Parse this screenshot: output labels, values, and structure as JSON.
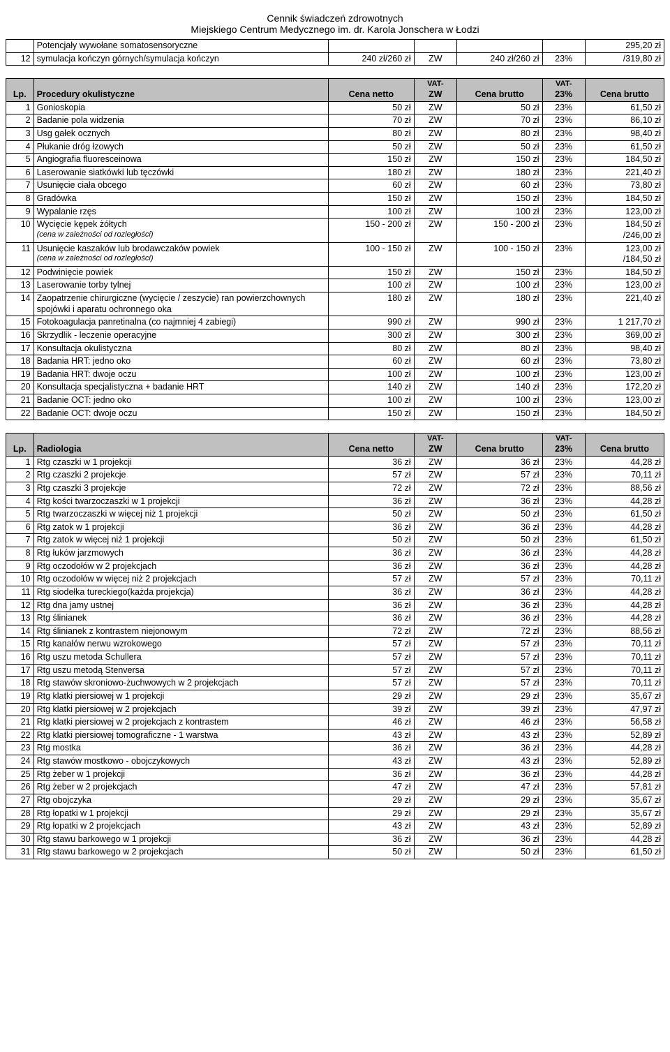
{
  "title": {
    "line1": "Cennik świadczeń zdrowotnych",
    "line2": "Miejskiego Centrum Medycznego im. dr. Karola Jonschera w Łodzi"
  },
  "intro_table": {
    "rows": [
      {
        "lp": "",
        "name": "Potencjały wywołane somatosensoryczne",
        "netto": "",
        "vatzw": "",
        "brutto1": "",
        "vat23": "",
        "brutto2": "295,20 zł"
      },
      {
        "lp": "12",
        "name": "symulacja kończyn górnych/symulacja kończyn",
        "netto": "240 zł/260 zł",
        "vatzw": "ZW",
        "brutto1": "240 zł/260 zł",
        "vat23": "23%",
        "brutto2": "/319,80 zł"
      }
    ]
  },
  "sections": [
    {
      "header": {
        "lp": "Lp.",
        "name": "Procedury okulistyczne",
        "netto": "Cena netto",
        "vatzw_top": "VAT-",
        "vatzw": "ZW",
        "brutto1": "Cena brutto",
        "vat23_top": "VAT-",
        "vat23": "23%",
        "brutto2": "Cena brutto"
      },
      "rows": [
        {
          "lp": "1",
          "name": "Gonioskopia",
          "netto": "50 zł",
          "vatzw": "ZW",
          "brutto1": "50 zł",
          "vat23": "23%",
          "brutto2": "61,50 zł"
        },
        {
          "lp": "2",
          "name": "Badanie pola widzenia",
          "netto": "70 zł",
          "vatzw": "ZW",
          "brutto1": "70 zł",
          "vat23": "23%",
          "brutto2": "86,10 zł"
        },
        {
          "lp": "3",
          "name": "Usg gałek ocznych",
          "netto": "80 zł",
          "vatzw": "ZW",
          "brutto1": "80 zł",
          "vat23": "23%",
          "brutto2": "98,40 zł"
        },
        {
          "lp": "4",
          "name": "Płukanie dróg łzowych",
          "netto": "50 zł",
          "vatzw": "ZW",
          "brutto1": "50 zł",
          "vat23": "23%",
          "brutto2": "61,50 zł"
        },
        {
          "lp": "5",
          "name": "Angiografia fluoresceinowa",
          "netto": "150 zł",
          "vatzw": "ZW",
          "brutto1": "150 zł",
          "vat23": "23%",
          "brutto2": "184,50 zł"
        },
        {
          "lp": "6",
          "name": "Laserowanie siatkówki lub tęczówki",
          "netto": "180 zł",
          "vatzw": "ZW",
          "brutto1": "180 zł",
          "vat23": "23%",
          "brutto2": "221,40 zł"
        },
        {
          "lp": "7",
          "name": "Usunięcie ciała obcego",
          "netto": "60 zł",
          "vatzw": "ZW",
          "brutto1": "60 zł",
          "vat23": "23%",
          "brutto2": "73,80 zł"
        },
        {
          "lp": "8",
          "name": "Gradówka",
          "netto": "150 zł",
          "vatzw": "ZW",
          "brutto1": "150 zł",
          "vat23": "23%",
          "brutto2": "184,50 zł"
        },
        {
          "lp": "9",
          "name": "Wypalanie rzęs",
          "netto": "100 zł",
          "vatzw": "ZW",
          "brutto1": "100 zł",
          "vat23": "23%",
          "brutto2": "123,00 zł"
        },
        {
          "lp": "10",
          "name": "Wycięcie kępek żółtych",
          "sub": "(cena w zależności od rozległości)",
          "netto": "150 - 200 zł",
          "vatzw": "ZW",
          "brutto1": "150 - 200 zł",
          "vat23": "23%",
          "brutto2": "184,50 zł",
          "brutto2_sub": "/246,00 zł"
        },
        {
          "lp": "11",
          "name": "Usunięcie kaszaków lub brodawczaków powiek",
          "sub": "(cena w zależności od rozległości)",
          "netto": "100 - 150 zł",
          "vatzw": "ZW",
          "brutto1": "100 - 150 zł",
          "vat23": "23%",
          "brutto2": "123,00 zł",
          "brutto2_sub": "/184,50 zł"
        },
        {
          "lp": "12",
          "name": "Podwinięcie powiek",
          "netto": "150 zł",
          "vatzw": "ZW",
          "brutto1": "150 zł",
          "vat23": "23%",
          "brutto2": "184,50 zł"
        },
        {
          "lp": "13",
          "name": "Laserowanie torby tylnej",
          "netto": "100 zł",
          "vatzw": "ZW",
          "brutto1": "100 zł",
          "vat23": "23%",
          "brutto2": "123,00 zł"
        },
        {
          "lp": "14",
          "name": "Zaopatrzenie chirurgiczne  (wycięcie / zeszycie) ran powierzchownych spojówki i aparatu ochronnego oka",
          "netto": "180 zł",
          "vatzw": "ZW",
          "brutto1": "180 zł",
          "vat23": "23%",
          "brutto2": "221,40 zł"
        },
        {
          "lp": "15",
          "name": "Fotokoagulacja panretinalna (co najmniej 4 zabiegi)",
          "netto": "990 zł",
          "vatzw": "ZW",
          "brutto1": "990 zł",
          "vat23": "23%",
          "brutto2": "1 217,70 zł"
        },
        {
          "lp": "16",
          "name": "Skrzydlik - leczenie operacyjne",
          "netto": "300 zł",
          "vatzw": "ZW",
          "brutto1": "300 zł",
          "vat23": "23%",
          "brutto2": "369,00 zł"
        },
        {
          "lp": "17",
          "name": "Konsultacja okulistyczna",
          "netto": "80 zł",
          "vatzw": "ZW",
          "brutto1": "80 zł",
          "vat23": "23%",
          "brutto2": "98,40 zł"
        },
        {
          "lp": "18",
          "name": "Badania HRT: jedno oko",
          "netto": "60 zł",
          "vatzw": "ZW",
          "brutto1": "60 zł",
          "vat23": "23%",
          "brutto2": "73,80 zł"
        },
        {
          "lp": "19",
          "name": "Badania HRT: dwoje oczu",
          "netto": "100 zł",
          "vatzw": "ZW",
          "brutto1": "100 zł",
          "vat23": "23%",
          "brutto2": "123,00 zł"
        },
        {
          "lp": "20",
          "name": "Konsultacja specjalistyczna + badanie HRT",
          "netto": "140 zł",
          "vatzw": "ZW",
          "brutto1": "140 zł",
          "vat23": "23%",
          "brutto2": "172,20 zł"
        },
        {
          "lp": "21",
          "name": "Badanie OCT: jedno oko",
          "netto": "100 zł",
          "vatzw": "ZW",
          "brutto1": "100 zł",
          "vat23": "23%",
          "brutto2": "123,00 zł"
        },
        {
          "lp": "22",
          "name": "Badanie OCT: dwoje oczu",
          "netto": "150 zł",
          "vatzw": "ZW",
          "brutto1": "150 zł",
          "vat23": "23%",
          "brutto2": "184,50 zł"
        }
      ]
    },
    {
      "header": {
        "lp": "Lp.",
        "name": "Radiologia",
        "netto": "Cena netto",
        "vatzw_top": "VAT-",
        "vatzw": "ZW",
        "brutto1": "Cena brutto",
        "vat23_top": "VAT-",
        "vat23": "23%",
        "brutto2": "Cena brutto"
      },
      "rows": [
        {
          "lp": "1",
          "name": "Rtg czaszki w 1 projekcji",
          "netto": "36 zł",
          "vatzw": "ZW",
          "brutto1": "36 zł",
          "vat23": "23%",
          "brutto2": "44,28 zł"
        },
        {
          "lp": "2",
          "name": "Rtg czaszki 2 projekcje",
          "netto": "57 zł",
          "vatzw": "ZW",
          "brutto1": "57 zł",
          "vat23": "23%",
          "brutto2": "70,11 zł"
        },
        {
          "lp": "3",
          "name": "Rtg czaszki 3 projekcje",
          "netto": "72 zł",
          "vatzw": "ZW",
          "brutto1": "72 zł",
          "vat23": "23%",
          "brutto2": "88,56 zł"
        },
        {
          "lp": "4",
          "name": "Rtg kości twarzoczaszki w 1 projekcji",
          "netto": "36 zł",
          "vatzw": "ZW",
          "brutto1": "36 zł",
          "vat23": "23%",
          "brutto2": "44,28 zł"
        },
        {
          "lp": "5",
          "name": "Rtg twarzoczaszki w więcej niż 1 projekcji",
          "netto": "50 zł",
          "vatzw": "ZW",
          "brutto1": "50 zł",
          "vat23": "23%",
          "brutto2": "61,50 zł"
        },
        {
          "lp": "6",
          "name": "Rtg zatok w 1 projekcji",
          "netto": "36 zł",
          "vatzw": "ZW",
          "brutto1": "36 zł",
          "vat23": "23%",
          "brutto2": "44,28 zł"
        },
        {
          "lp": "7",
          "name": "Rtg zatok w więcej niż 1 projekcji",
          "netto": "50 zł",
          "vatzw": "ZW",
          "brutto1": "50 zł",
          "vat23": "23%",
          "brutto2": "61,50 zł"
        },
        {
          "lp": "8",
          "name": "Rtg łuków jarzmowych",
          "netto": "36 zł",
          "vatzw": "ZW",
          "brutto1": "36 zł",
          "vat23": "23%",
          "brutto2": "44,28 zł"
        },
        {
          "lp": "9",
          "name": "Rtg oczodołów w 2 projekcjach",
          "netto": "36 zł",
          "vatzw": "ZW",
          "brutto1": "36 zł",
          "vat23": "23%",
          "brutto2": "44,28 zł"
        },
        {
          "lp": "10",
          "name": "Rtg oczodołów w więcej niż 2 projekcjach",
          "netto": "57 zł",
          "vatzw": "ZW",
          "brutto1": "57 zł",
          "vat23": "23%",
          "brutto2": "70,11 zł"
        },
        {
          "lp": "11",
          "name": "Rtg siodełka tureckiego(każda projekcja)",
          "netto": "36 zł",
          "vatzw": "ZW",
          "brutto1": "36 zł",
          "vat23": "23%",
          "brutto2": "44,28 zł"
        },
        {
          "lp": "12",
          "name": "Rtg dna jamy ustnej",
          "netto": "36 zł",
          "vatzw": "ZW",
          "brutto1": "36 zł",
          "vat23": "23%",
          "brutto2": "44,28 zł"
        },
        {
          "lp": "13",
          "name": "Rtg ślinianek",
          "netto": "36 zł",
          "vatzw": "ZW",
          "brutto1": "36 zł",
          "vat23": "23%",
          "brutto2": "44,28 zł"
        },
        {
          "lp": "14",
          "name": "Rtg ślinianek z kontrastem niejonowym",
          "netto": "72 zł",
          "vatzw": "ZW",
          "brutto1": "72 zł",
          "vat23": "23%",
          "brutto2": "88,56 zł"
        },
        {
          "lp": "15",
          "name": "Rtg kanałów nerwu wzrokowego",
          "netto": "57 zł",
          "vatzw": "ZW",
          "brutto1": "57 zł",
          "vat23": "23%",
          "brutto2": "70,11 zł"
        },
        {
          "lp": "16",
          "name": "Rtg uszu metoda Schullera",
          "netto": "57 zł",
          "vatzw": "ZW",
          "brutto1": "57 zł",
          "vat23": "23%",
          "brutto2": "70,11 zł"
        },
        {
          "lp": "17",
          "name": "Rtg uszu metodą Stenversa",
          "netto": "57 zł",
          "vatzw": "ZW",
          "brutto1": "57 zł",
          "vat23": "23%",
          "brutto2": "70,11 zł"
        },
        {
          "lp": "18",
          "name": "Rtg stawów skroniowo-żuchwowych w 2 projekcjach",
          "netto": "57 zł",
          "vatzw": "ZW",
          "brutto1": "57 zł",
          "vat23": "23%",
          "brutto2": "70,11 zł"
        },
        {
          "lp": "19",
          "name": "Rtg klatki piersiowej w 1 projekcji",
          "netto": "29 zł",
          "vatzw": "ZW",
          "brutto1": "29 zł",
          "vat23": "23%",
          "brutto2": "35,67 zł"
        },
        {
          "lp": "20",
          "name": "Rtg klatki piersiowej w 2 projekcjach",
          "netto": "39 zł",
          "vatzw": "ZW",
          "brutto1": "39 zł",
          "vat23": "23%",
          "brutto2": "47,97 zł"
        },
        {
          "lp": "21",
          "name": "Rtg klatki piersiowej w 2 projekcjach z kontrastem",
          "netto": "46 zł",
          "vatzw": "ZW",
          "brutto1": "46 zł",
          "vat23": "23%",
          "brutto2": "56,58 zł"
        },
        {
          "lp": "22",
          "name": "Rtg klatki piersiowej tomograficzne - 1 warstwa",
          "netto": "43 zł",
          "vatzw": "ZW",
          "brutto1": "43 zł",
          "vat23": "23%",
          "brutto2": "52,89 zł"
        },
        {
          "lp": "23",
          "name": "Rtg mostka",
          "netto": "36 zł",
          "vatzw": "ZW",
          "brutto1": "36 zł",
          "vat23": "23%",
          "brutto2": "44,28 zł"
        },
        {
          "lp": "24",
          "name": "Rtg stawów mostkowo - obojczykowych",
          "netto": "43 zł",
          "vatzw": "ZW",
          "brutto1": "43 zł",
          "vat23": "23%",
          "brutto2": "52,89 zł"
        },
        {
          "lp": "25",
          "name": "Rtg żeber w 1 projekcji",
          "netto": "36 zł",
          "vatzw": "ZW",
          "brutto1": "36 zł",
          "vat23": "23%",
          "brutto2": "44,28 zł"
        },
        {
          "lp": "26",
          "name": "Rtg żeber w 2 projekcjach",
          "netto": "47 zł",
          "vatzw": "ZW",
          "brutto1": "47 zł",
          "vat23": "23%",
          "brutto2": "57,81 zł"
        },
        {
          "lp": "27",
          "name": "Rtg obojczyka",
          "netto": "29 zł",
          "vatzw": "ZW",
          "brutto1": "29 zł",
          "vat23": "23%",
          "brutto2": "35,67 zł"
        },
        {
          "lp": "28",
          "name": "Rtg łopatki w 1 projekcji",
          "netto": "29 zł",
          "vatzw": "ZW",
          "brutto1": "29 zł",
          "vat23": "23%",
          "brutto2": "35,67 zł"
        },
        {
          "lp": "29",
          "name": "Rtg łopatki w 2 projekcjach",
          "netto": "43 zł",
          "vatzw": "ZW",
          "brutto1": "43 zł",
          "vat23": "23%",
          "brutto2": "52,89 zł"
        },
        {
          "lp": "30",
          "name": "Rtg stawu barkowego w 1 projekcji",
          "netto": "36 zł",
          "vatzw": "ZW",
          "brutto1": "36 zł",
          "vat23": "23%",
          "brutto2": "44,28 zł"
        },
        {
          "lp": "31",
          "name": "Rtg stawu barkowego w 2 projekcjach",
          "netto": "50 zł",
          "vatzw": "ZW",
          "brutto1": "50 zł",
          "vat23": "23%",
          "brutto2": "61,50 zł"
        }
      ]
    }
  ]
}
